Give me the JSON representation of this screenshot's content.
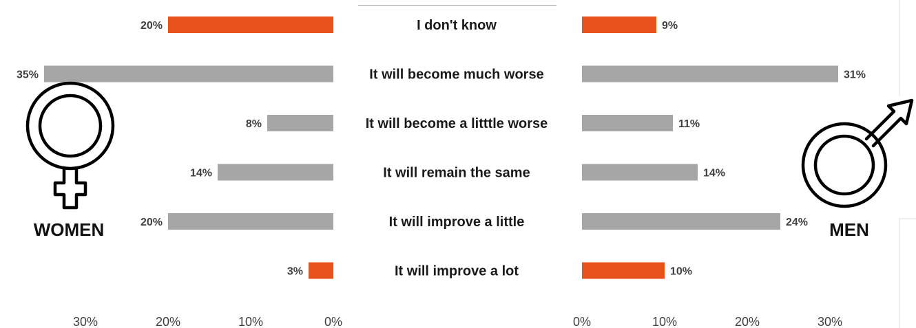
{
  "chart_data": {
    "type": "bar",
    "categories": [
      "I don't know",
      "It will become much worse",
      "It will become a litttle worse",
      "It will remain the same",
      "It will improve a little",
      "It will improve a lot"
    ],
    "series": [
      {
        "name": "WOMEN",
        "values": [
          20,
          35,
          8,
          14,
          20,
          3
        ],
        "labels": [
          "20%",
          "35%",
          "8%",
          "14%",
          "20%",
          "3%"
        ]
      },
      {
        "name": "MEN",
        "values": [
          9,
          31,
          11,
          14,
          24,
          10
        ],
        "labels": [
          "9%",
          "31%",
          "11%",
          "14%",
          "24%",
          "10%"
        ]
      }
    ],
    "highlight_categories": [
      "I don't know",
      "It will improve a lot"
    ],
    "women_ticks": [
      "30%",
      "20%",
      "10%",
      "0%"
    ],
    "men_ticks": [
      "0%",
      "10%",
      "20%",
      "30%"
    ],
    "xlim": [
      0,
      35
    ],
    "colors": {
      "highlight": "#e8501c",
      "normal": "#a6a6a6"
    },
    "women_label": "WOMEN",
    "men_label": "MEN",
    "women_icon": "female-symbol-icon",
    "men_icon": "male-symbol-icon"
  }
}
